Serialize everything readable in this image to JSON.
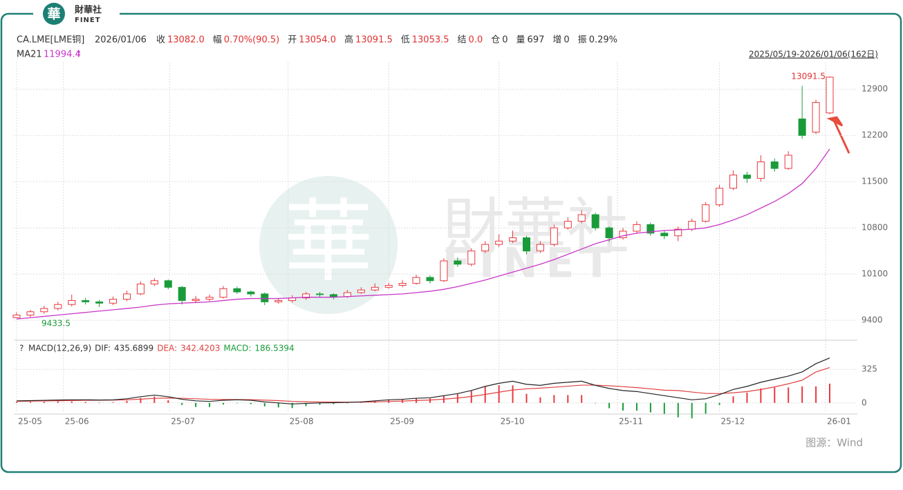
{
  "logo": {
    "mark": "華",
    "name": "財華社",
    "sub": "FINET"
  },
  "header": {
    "symbol": "CA.LME[LME铜]",
    "date": "2026/01/06",
    "items": [
      {
        "label": "收",
        "value": "13082.0",
        "color": "#e03030"
      },
      {
        "label": "幅",
        "value": "0.70%(90.5)",
        "color": "#e03030"
      },
      {
        "label": "开",
        "value": "13054.0",
        "color": "#e03030"
      },
      {
        "label": "高",
        "value": "13091.5",
        "color": "#e03030"
      },
      {
        "label": "低",
        "value": "13053.5",
        "color": "#e03030"
      },
      {
        "label": "结",
        "value": "0.0",
        "color": "#e03030"
      },
      {
        "label": "仓",
        "value": "0",
        "color": "#333"
      },
      {
        "label": "量",
        "value": "697",
        "color": "#333"
      },
      {
        "label": "增",
        "value": "0",
        "color": "#333"
      },
      {
        "label": "振",
        "value": "0.29%",
        "color": "#333"
      }
    ],
    "ma_label": "MA21",
    "ma_trend": "↑",
    "range": "2025/05/19-2026/01/06(162日)"
  },
  "source": "图源：Wind",
  "chart_data": [
    {
      "type": "candlestick",
      "up_color": "#e8383d",
      "down_color": "#1a9b3a",
      "ma_color": "#c837c8",
      "grid": true,
      "open": [
        9440,
        9480,
        9530,
        9580,
        9640,
        9700,
        9680,
        9660,
        9720,
        9800,
        9950,
        10000,
        9900,
        9700,
        9720,
        9750,
        9880,
        9830,
        9800,
        9680,
        9700,
        9740,
        9800,
        9790,
        9760,
        9820,
        9860,
        9900,
        9930,
        9960,
        10050,
        10000,
        10300,
        10250,
        10450,
        10550,
        10600,
        10650,
        10450,
        10550,
        10800,
        10900,
        11000,
        10800,
        10650,
        10750,
        10850,
        10720,
        10680,
        10780,
        10900,
        11150,
        11400,
        11600,
        11550,
        11800,
        11700,
        12450,
        12250,
        12540
      ],
      "high": [
        9520,
        9560,
        9620,
        9680,
        9790,
        9740,
        9710,
        9760,
        9850,
        9990,
        10040,
        10020,
        9920,
        9770,
        9790,
        9920,
        9910,
        9850,
        9820,
        9740,
        9780,
        9830,
        9830,
        9810,
        9860,
        9900,
        9960,
        9970,
        10010,
        10090,
        10080,
        10340,
        10350,
        10490,
        10600,
        10700,
        10760,
        10680,
        10600,
        10850,
        10960,
        11070,
        11030,
        10820,
        10800,
        10900,
        10880,
        10760,
        10820,
        10940,
        11190,
        11450,
        11670,
        11650,
        11900,
        11850,
        11960,
        12950,
        12740,
        13091.5
      ],
      "low": [
        9433.5,
        9450,
        9500,
        9550,
        9610,
        9640,
        9600,
        9630,
        9690,
        9780,
        9920,
        9870,
        9640,
        9660,
        9690,
        9730,
        9800,
        9760,
        9630,
        9650,
        9670,
        9710,
        9750,
        9720,
        9740,
        9800,
        9840,
        9880,
        9900,
        9940,
        9960,
        9980,
        10210,
        10220,
        10420,
        10510,
        10570,
        10400,
        10420,
        10520,
        10770,
        10870,
        10760,
        10590,
        10620,
        10720,
        10680,
        10630,
        10600,
        10750,
        10880,
        11120,
        11370,
        11480,
        11500,
        11650,
        11680,
        12150,
        12220,
        12520
      ],
      "close": [
        9480,
        9530,
        9580,
        9640,
        9700,
        9680,
        9660,
        9720,
        9800,
        9950,
        10000,
        9900,
        9700,
        9720,
        9750,
        9880,
        9830,
        9800,
        9680,
        9700,
        9740,
        9800,
        9790,
        9760,
        9820,
        9860,
        9900,
        9930,
        9960,
        10050,
        10000,
        10300,
        10250,
        10450,
        10550,
        10600,
        10650,
        10450,
        10550,
        10800,
        10900,
        11000,
        10800,
        10650,
        10750,
        10850,
        10720,
        10680,
        10780,
        10900,
        11150,
        11400,
        11600,
        11550,
        11800,
        11700,
        11900,
        12200,
        12700,
        13082
      ],
      "ma": [
        9420,
        9440,
        9460,
        9480,
        9500,
        9520,
        9540,
        9560,
        9580,
        9600,
        9630,
        9650,
        9660,
        9670,
        9680,
        9700,
        9720,
        9730,
        9730,
        9730,
        9740,
        9750,
        9750,
        9750,
        9760,
        9770,
        9780,
        9790,
        9800,
        9820,
        9840,
        9870,
        9910,
        9960,
        10010,
        10070,
        10130,
        10190,
        10250,
        10320,
        10400,
        10480,
        10560,
        10620,
        10680,
        10720,
        10740,
        10760,
        10770,
        10780,
        10800,
        10850,
        10920,
        11000,
        11100,
        11200,
        11320,
        11470,
        11700,
        11994.4
      ],
      "ylim": [
        9130,
        13310
      ],
      "yticks": [
        9400,
        10100,
        10800,
        11500,
        12200,
        12900
      ],
      "xticks": [
        {
          "value": 0,
          "label": "25-05"
        },
        {
          "value": 3.4,
          "label": "25-06"
        },
        {
          "value": 11.1,
          "label": "25-07"
        },
        {
          "value": 19.7,
          "label": "25-08"
        },
        {
          "value": 27,
          "label": "25-09"
        },
        {
          "value": 35,
          "label": "25-10"
        },
        {
          "value": 43.6,
          "label": "25-11"
        },
        {
          "value": 51,
          "label": "25-12"
        },
        {
          "value": 58.7,
          "label": "26-01"
        }
      ]
    },
    {
      "type": "macd",
      "title": "MACD(12,26,9)",
      "dif_label": "DIF:",
      "dea_label": "DEA:",
      "macd_label": "MACD:",
      "dif_color": "#222",
      "dea_color": "#e04040",
      "dif": [
        20,
        22,
        25,
        28,
        30,
        30,
        28,
        30,
        40,
        60,
        75,
        60,
        35,
        20,
        15,
        25,
        30,
        25,
        10,
        0,
        -10,
        -5,
        0,
        2,
        5,
        10,
        20,
        30,
        35,
        45,
        50,
        70,
        90,
        120,
        160,
        190,
        210,
        180,
        170,
        190,
        200,
        210,
        170,
        140,
        120,
        110,
        90,
        70,
        50,
        30,
        40,
        80,
        130,
        160,
        200,
        230,
        260,
        300,
        380,
        435.6899
      ],
      "dea": [
        15,
        17,
        19,
        21,
        23,
        25,
        26,
        27,
        30,
        36,
        44,
        47,
        45,
        40,
        35,
        33,
        32,
        31,
        27,
        22,
        15,
        11,
        9,
        8,
        7,
        8,
        10,
        14,
        18,
        23,
        28,
        36,
        47,
        62,
        82,
        104,
        125,
        136,
        143,
        152,
        162,
        172,
        172,
        166,
        157,
        148,
        136,
        123,
        120,
        105,
        92,
        90,
        98,
        110,
        130,
        155,
        185,
        220,
        300,
        342.4203
      ],
      "hist": [
        10,
        10,
        12,
        14,
        14,
        10,
        4,
        6,
        20,
        48,
        62,
        26,
        -20,
        -40,
        -40,
        -16,
        -4,
        -12,
        -34,
        -44,
        -50,
        -32,
        -18,
        -12,
        -4,
        4,
        20,
        32,
        34,
        44,
        44,
        68,
        86,
        116,
        156,
        172,
        170,
        88,
        54,
        76,
        76,
        76,
        -4,
        -52,
        -74,
        -76,
        -92,
        -106,
        -140,
        -150,
        -104,
        -20,
        64,
        100,
        140,
        150,
        150,
        160,
        160,
        186.5394
      ],
      "ylim": [
        -95,
        460
      ],
      "yticks": [
        0,
        325
      ]
    }
  ]
}
